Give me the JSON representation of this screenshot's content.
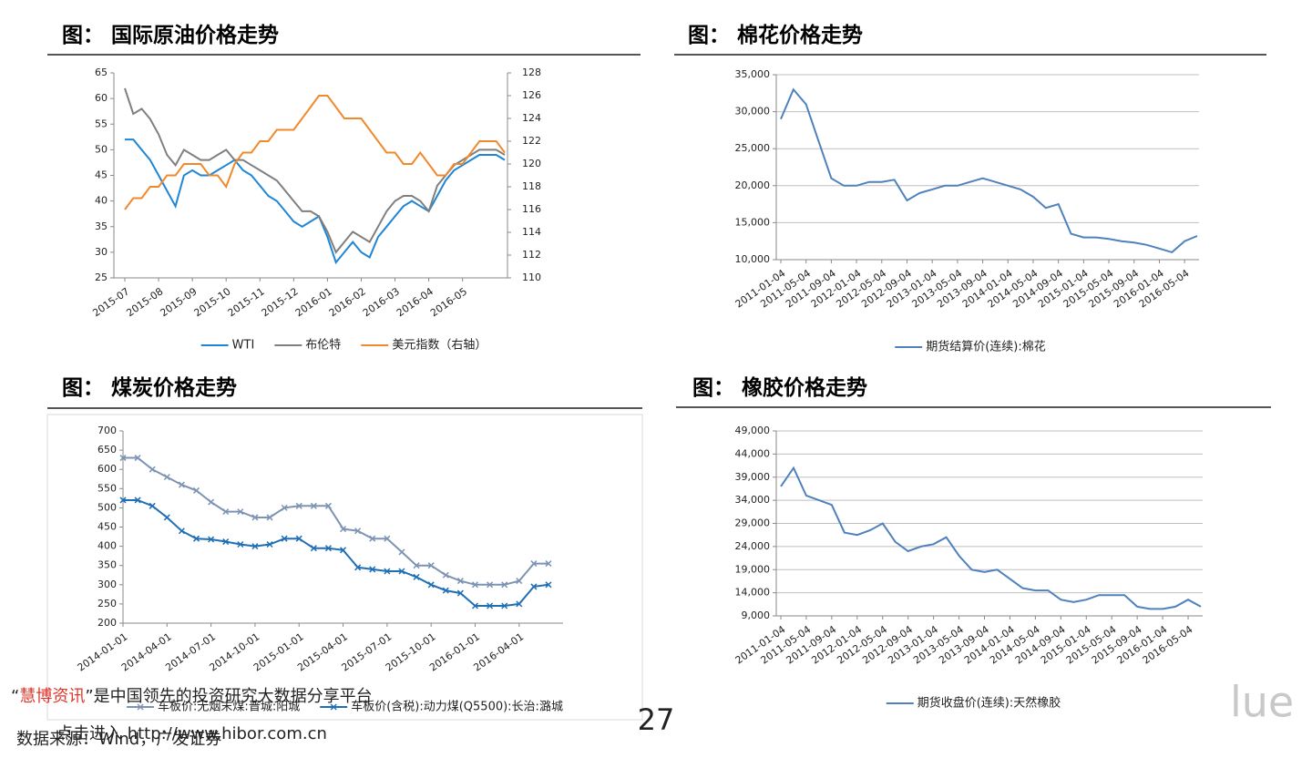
{
  "chart_data": [
    {
      "type": "line",
      "title": "图：  国际原油价格走势",
      "categories": [
        "2015-07",
        null,
        null,
        null,
        "2015-08",
        null,
        null,
        null,
        "2015-09",
        null,
        null,
        null,
        "2015-10",
        null,
        null,
        null,
        "2015-11",
        null,
        null,
        null,
        "2015-12",
        null,
        null,
        null,
        "2016-01",
        null,
        null,
        null,
        "2016-02",
        null,
        null,
        null,
        "2016-03",
        null,
        null,
        null,
        "2016-04",
        null,
        null,
        null,
        "2016-05",
        null,
        null,
        null,
        null,
        null
      ],
      "series": [
        {
          "name": "WTI",
          "color": "#1f86d6",
          "values": [
            52,
            52,
            50,
            48,
            45,
            42,
            39,
            45,
            46,
            45,
            45,
            46,
            47,
            48,
            46,
            45,
            43,
            41,
            40,
            38,
            36,
            35,
            36,
            37,
            33,
            28,
            30,
            32,
            30,
            29,
            33,
            35,
            37,
            39,
            40,
            39,
            38,
            41,
            44,
            46,
            47,
            48,
            49,
            49,
            49,
            48
          ]
        },
        {
          "name": "布伦特",
          "color": "#7f7f7f",
          "values": [
            62,
            57,
            58,
            56,
            53,
            49,
            47,
            50,
            49,
            48,
            48,
            49,
            50,
            48,
            48,
            47,
            46,
            45,
            44,
            42,
            40,
            38,
            38,
            37,
            34,
            30,
            32,
            34,
            33,
            32,
            35,
            38,
            40,
            41,
            41,
            40,
            38,
            43,
            45,
            47,
            48,
            49,
            50,
            50,
            50,
            49
          ]
        },
        {
          "name": "美元指数（右轴）",
          "color": "#f0892c",
          "axis": "y2",
          "values": [
            116,
            117,
            117,
            118,
            118,
            119,
            119,
            120,
            120,
            120,
            119,
            119,
            118,
            120,
            121,
            121,
            122,
            122,
            123,
            123,
            123,
            124,
            125,
            126,
            126,
            125,
            124,
            124,
            124,
            123,
            122,
            121,
            121,
            120,
            120,
            121,
            120,
            119,
            119,
            120,
            120,
            121,
            122,
            122,
            122,
            121
          ]
        }
      ],
      "ylim": [
        25,
        65
      ],
      "yticks": [
        25,
        30,
        35,
        40,
        45,
        50,
        55,
        60,
        65
      ],
      "y2lim": [
        110,
        128
      ],
      "y2ticks": [
        110,
        112,
        114,
        116,
        118,
        120,
        122,
        124,
        126,
        128
      ],
      "grid": false
    },
    {
      "type": "line",
      "title": "图：  棉花价格走势",
      "categories": [
        "2011-01-04",
        null,
        "2011-05-04",
        null,
        "2011-09-04",
        null,
        "2012-01-04",
        null,
        "2012-05-04",
        null,
        "2012-09-04",
        null,
        "2013-01-04",
        null,
        "2013-05-04",
        null,
        "2013-09-04",
        null,
        "2014-01-04",
        null,
        "2014-05-04",
        null,
        "2014-09-04",
        null,
        "2015-01-04",
        null,
        "2015-05-04",
        null,
        "2015-09-04",
        null,
        "2016-01-04",
        null,
        "2016-05-04",
        null
      ],
      "series": [
        {
          "name": "期货结算价(连续):棉花",
          "color": "#4f81bd",
          "values": [
            29000,
            33000,
            31000,
            26000,
            21000,
            20000,
            20000,
            20500,
            20500,
            20800,
            18000,
            19000,
            19500,
            20000,
            20000,
            20500,
            21000,
            20500,
            20000,
            19500,
            18500,
            17000,
            17500,
            13500,
            13000,
            13000,
            12800,
            12500,
            12300,
            12000,
            11500,
            11000,
            12500,
            13200
          ]
        }
      ],
      "ylim": [
        10000,
        35000
      ],
      "yticks": [
        {
          "value": 10000,
          "label": "10,000"
        },
        {
          "value": 15000,
          "label": "15,000"
        },
        {
          "value": 20000,
          "label": "20,000"
        },
        {
          "value": 25000,
          "label": "25,000"
        },
        {
          "value": 30000,
          "label": "30,000"
        },
        {
          "value": 35000,
          "label": "35,000"
        }
      ],
      "grid": true
    },
    {
      "type": "line",
      "title": "图：  煤炭价格走势",
      "categories": [
        "2014-01-01",
        null,
        null,
        "2014-04-01",
        null,
        null,
        "2014-07-01",
        null,
        null,
        "2014-10-01",
        null,
        null,
        "2015-01-01",
        null,
        null,
        "2015-04-01",
        null,
        null,
        "2015-07-01",
        null,
        null,
        "2015-10-01",
        null,
        null,
        "2016-01-01",
        null,
        null,
        "2016-04-01",
        null,
        null
      ],
      "series": [
        {
          "name": "车板价:无烟末煤:晋城:阳城",
          "color": "#7d93b3",
          "marker": "x",
          "values": [
            630,
            630,
            600,
            580,
            560,
            545,
            515,
            490,
            490,
            475,
            475,
            500,
            505,
            505,
            505,
            445,
            440,
            420,
            420,
            385,
            350,
            350,
            325,
            310,
            300,
            300,
            300,
            310,
            355,
            355
          ]
        },
        {
          "name": "车板价(含税):动力煤(Q5500):长治:潞城",
          "color": "#1f6fb5",
          "marker": "x",
          "values": [
            520,
            520,
            505,
            475,
            440,
            420,
            418,
            412,
            405,
            400,
            405,
            420,
            420,
            395,
            395,
            390,
            345,
            340,
            335,
            335,
            320,
            300,
            285,
            278,
            245,
            245,
            245,
            250,
            295,
            300
          ]
        }
      ],
      "ylim": [
        200,
        700
      ],
      "yticks": [
        200,
        250,
        300,
        350,
        400,
        450,
        500,
        550,
        600,
        650,
        700
      ],
      "grid": false
    },
    {
      "type": "line",
      "title": "图：  橡胶价格走势",
      "categories": [
        "2011-01-04",
        null,
        "2011-05-04",
        null,
        "2011-09-04",
        null,
        "2012-01-04",
        null,
        "2012-05-04",
        null,
        "2012-09-04",
        null,
        "2013-01-04",
        null,
        "2013-05-04",
        null,
        "2013-09-04",
        null,
        "2014-01-04",
        null,
        "2014-05-04",
        null,
        "2014-09-04",
        null,
        "2015-01-04",
        null,
        "2015-05-04",
        null,
        "2015-09-04",
        null,
        "2016-01-04",
        null,
        "2016-05-04",
        null
      ],
      "series": [
        {
          "name": "期货收盘价(连续):天然橡胶",
          "color": "#4f81bd",
          "values": [
            37000,
            41000,
            35000,
            34000,
            33000,
            27000,
            26500,
            27500,
            29000,
            25000,
            23000,
            24000,
            24500,
            26000,
            22000,
            19000,
            18500,
            19000,
            17000,
            15000,
            14500,
            14500,
            12500,
            12000,
            12500,
            13500,
            13500,
            13500,
            11000,
            10500,
            10500,
            11000,
            12500,
            11000
          ]
        }
      ],
      "ylim": [
        9000,
        49000
      ],
      "yticks": [
        {
          "value": 9000,
          "label": "9,000"
        },
        {
          "value": 14000,
          "label": "14,000"
        },
        {
          "value": 19000,
          "label": "19,000"
        },
        {
          "value": 24000,
          "label": "24,000"
        },
        {
          "value": 29000,
          "label": "29,000"
        },
        {
          "value": 34000,
          "label": "34,000"
        },
        {
          "value": 39000,
          "label": "39,000"
        },
        {
          "value": 44000,
          "label": "44,000"
        },
        {
          "value": 49000,
          "label": "49,000"
        }
      ],
      "grid": true
    }
  ],
  "source": "数据来源：Wind，广发证券",
  "notice": [
    {
      "text": "“"
    },
    {
      "text": "慧博资讯",
      "color": "#e0352b"
    },
    {
      "text": "”是中国领先的投资研究大数据分享平台"
    }
  ],
  "link": "点击进入 http://www.hibor.com.cn",
  "page_number": "27",
  "watermark": "lue"
}
